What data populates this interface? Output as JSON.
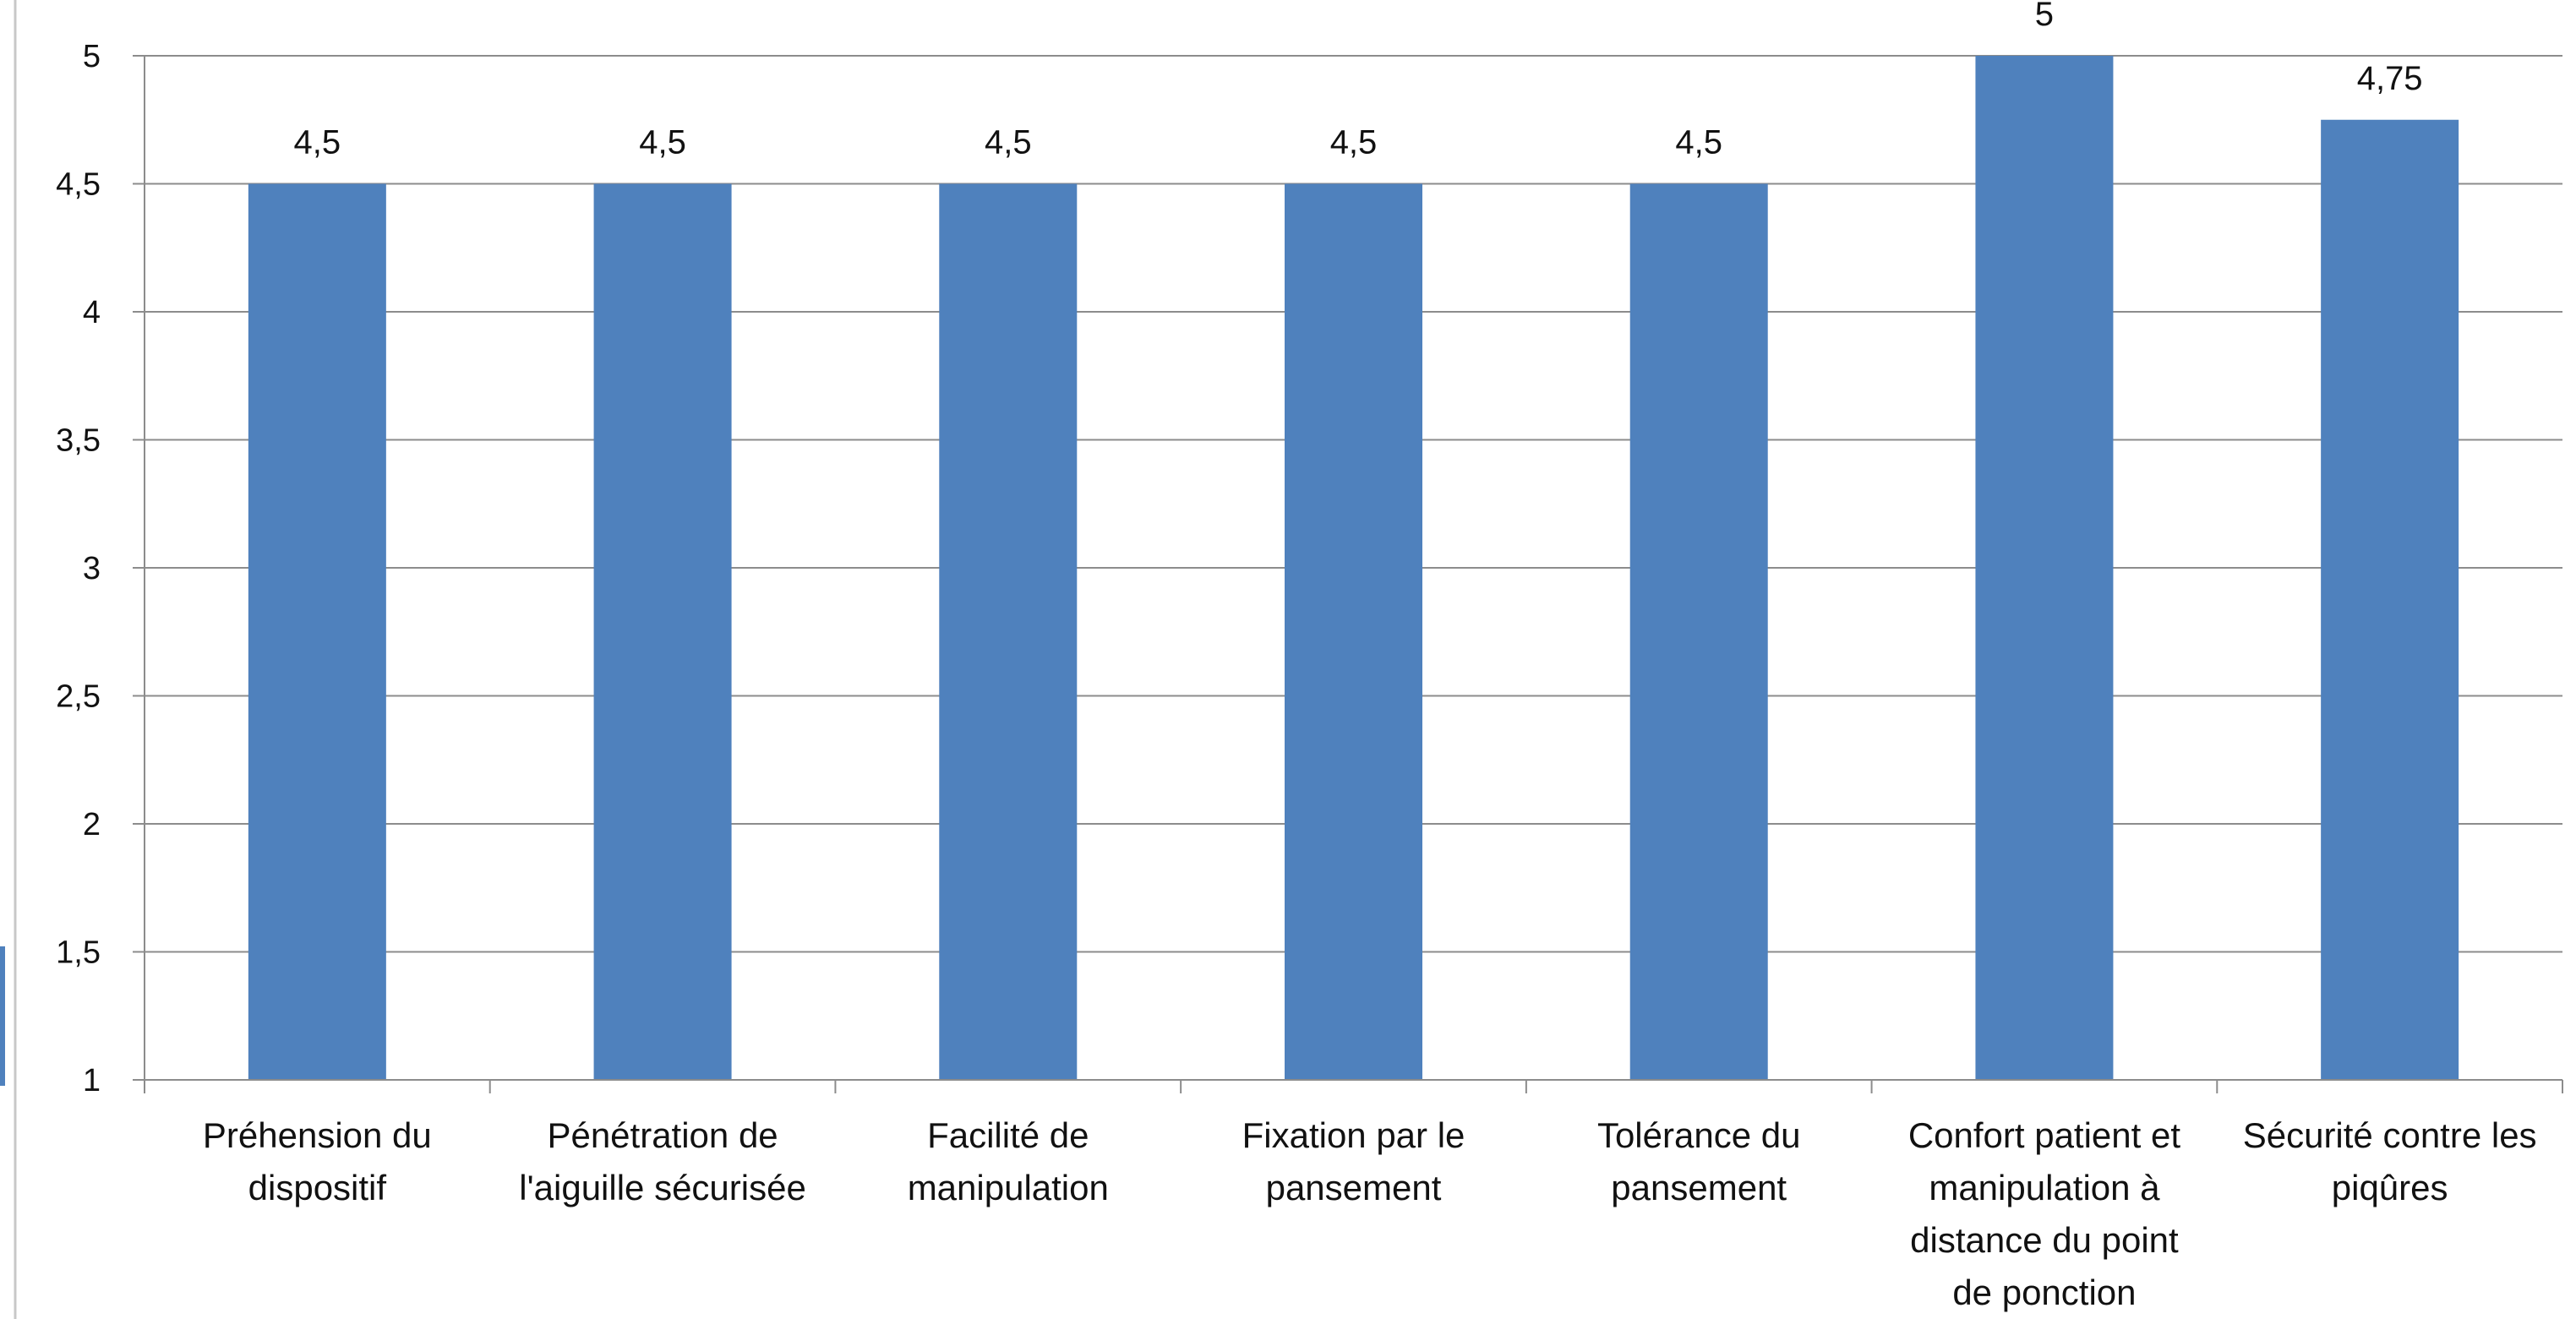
{
  "chart_data": {
    "type": "bar",
    "categories": [
      [
        "Préhension du",
        "dispositif"
      ],
      [
        "Pénétration de",
        "l'aiguille sécurisée"
      ],
      [
        "Facilité de",
        "manipulation"
      ],
      [
        "Fixation par le",
        "pansement"
      ],
      [
        "Tolérance du",
        "pansement"
      ],
      [
        "Confort patient et",
        "manipulation à",
        "distance du point",
        "de ponction"
      ],
      [
        "Sécurité contre les",
        "piqûres"
      ]
    ],
    "values": [
      4.5,
      4.5,
      4.5,
      4.5,
      4.5,
      5,
      4.75
    ],
    "data_labels": [
      "4,5",
      "4,5",
      "4,5",
      "4,5",
      "4,5",
      "5",
      "4,75"
    ],
    "ylim": [
      1,
      5
    ],
    "yticks": [
      1,
      1.5,
      2,
      2.5,
      3,
      3.5,
      4,
      4.5,
      5
    ],
    "ytick_labels": [
      "1",
      "1,5",
      "2",
      "2,5",
      "3",
      "3,5",
      "4",
      "4,5",
      "5"
    ],
    "grid": true,
    "bar_color": "#4F81BD",
    "grid_color": "#8C8C8C"
  }
}
